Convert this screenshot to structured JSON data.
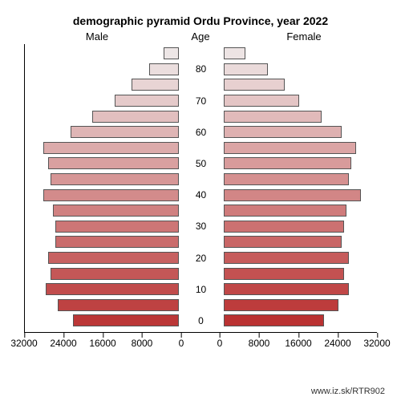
{
  "chart": {
    "type": "population-pyramid",
    "title": "demographic pyramid Ordu Province, year 2022",
    "maleLabel": "Male",
    "ageLabel": "Age",
    "femaleLabel": "Female",
    "background": "#ffffff",
    "barBorderColor": "#555555",
    "titleFontSize": 14,
    "labelFontSize": 13,
    "axisFontSize": 12,
    "sideWidthPx": 196,
    "barHeightPx": 15,
    "rowHeightPx": 19.6,
    "xDomain": [
      0,
      32000
    ],
    "xTicks": [
      {
        "pos": 0,
        "label": "32000"
      },
      {
        "pos": 49,
        "label": "24000"
      },
      {
        "pos": 98,
        "label": "16000"
      },
      {
        "pos": 147,
        "label": "8000"
      },
      {
        "pos": 196,
        "label": "0"
      },
      {
        "pos": 244,
        "label": "0"
      },
      {
        "pos": 293,
        "label": "8000"
      },
      {
        "pos": 342,
        "label": "16000"
      },
      {
        "pos": 391,
        "label": "24000"
      },
      {
        "pos": 440,
        "label": "32000"
      }
    ],
    "yTicks": [
      {
        "row": 1,
        "label": "80"
      },
      {
        "row": 3,
        "label": "70"
      },
      {
        "row": 5,
        "label": "60"
      },
      {
        "row": 7,
        "label": "50"
      },
      {
        "row": 9,
        "label": "40"
      },
      {
        "row": 11,
        "label": "30"
      },
      {
        "row": 13,
        "label": "20"
      },
      {
        "row": 15,
        "label": "10"
      },
      {
        "row": 17,
        "label": "0"
      }
    ],
    "rows": [
      {
        "age": "85+",
        "male": 3000,
        "female": 4500,
        "maleColor": "#ede6e6",
        "femaleColor": "#ede4e4"
      },
      {
        "age": "80-84",
        "male": 6000,
        "female": 9000,
        "maleColor": "#ebdede",
        "femaleColor": "#eadada"
      },
      {
        "age": "75-79",
        "male": 9500,
        "female": 12500,
        "maleColor": "#e8d4d4",
        "femaleColor": "#e7d0d0"
      },
      {
        "age": "70-74",
        "male": 13000,
        "female": 15500,
        "maleColor": "#e5caca",
        "femaleColor": "#e4c5c5"
      },
      {
        "age": "65-69",
        "male": 17500,
        "female": 20000,
        "maleColor": "#e2bfbf",
        "femaleColor": "#e1baba"
      },
      {
        "age": "60-64",
        "male": 22000,
        "female": 24000,
        "maleColor": "#dfb5b5",
        "femaleColor": "#deb0b0"
      },
      {
        "age": "55-59",
        "male": 27500,
        "female": 27000,
        "maleColor": "#dcabab",
        "femaleColor": "#dba5a5"
      },
      {
        "age": "50-54",
        "male": 26500,
        "female": 26000,
        "maleColor": "#d9a0a0",
        "femaleColor": "#d89b9b"
      },
      {
        "age": "45-49",
        "male": 26000,
        "female": 25500,
        "maleColor": "#d69696",
        "femaleColor": "#d59090"
      },
      {
        "age": "40-44",
        "male": 27500,
        "female": 28000,
        "maleColor": "#d38b8b",
        "femaleColor": "#d28686"
      },
      {
        "age": "35-39",
        "male": 25500,
        "female": 25000,
        "maleColor": "#d08181",
        "femaleColor": "#cf7b7b"
      },
      {
        "age": "30-34",
        "male": 25000,
        "female": 24500,
        "maleColor": "#cd7676",
        "femaleColor": "#cc7171"
      },
      {
        "age": "25-29",
        "male": 25000,
        "female": 24000,
        "maleColor": "#ca6c6c",
        "femaleColor": "#c96666"
      },
      {
        "age": "20-24",
        "male": 26500,
        "female": 25500,
        "maleColor": "#c76161",
        "femaleColor": "#c65c5c"
      },
      {
        "age": "15-19",
        "male": 26000,
        "female": 24500,
        "maleColor": "#c45757",
        "femaleColor": "#c35151"
      },
      {
        "age": "10-14",
        "male": 27000,
        "female": 25500,
        "maleColor": "#c14c4c",
        "femaleColor": "#c04747"
      },
      {
        "age": "5-9",
        "male": 24500,
        "female": 23500,
        "maleColor": "#be4242",
        "femaleColor": "#bd3c3c"
      },
      {
        "age": "0-4",
        "male": 21500,
        "female": 20500,
        "maleColor": "#bb3737",
        "femaleColor": "#ba3232"
      }
    ],
    "credit": "www.iz.sk/RTR902"
  }
}
